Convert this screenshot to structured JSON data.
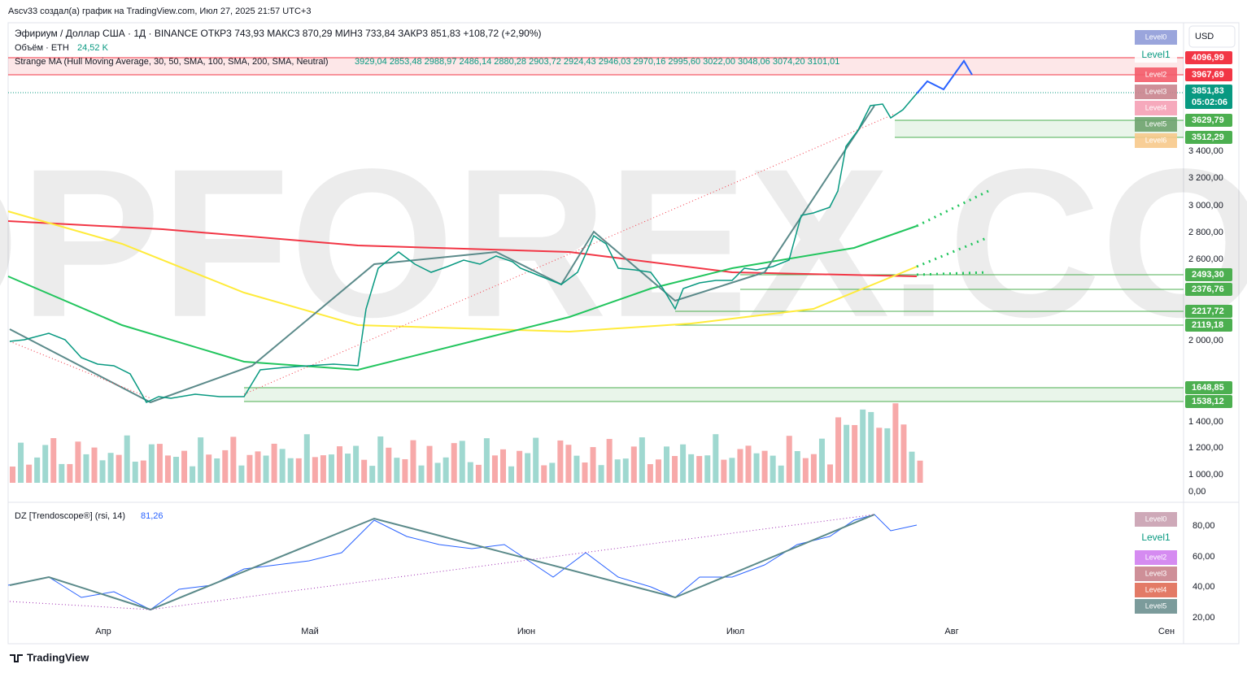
{
  "header": {
    "author_line": "Ascv33 создал(а) график на TradingView.com, Июл 27, 2025 21:57 UTC+3",
    "symbol_line": "Эфириум / Доллар США · 1Д · BINANCE  ОТКР3 743,93  МАКС3 870,29  МИН3 733,84  ЗАКР3 851,83  +108,72 (+2,90%)",
    "volume_label": "Объём · ETH",
    "volume_value": "24,52 K",
    "ma_label": "Strange MA (Hull Moving Average, 30, 50, SMA, 100, SMA, 200, SMA, Neutral)",
    "ma_values": "3929,04  2853,48  2988,97  2486,14  2880,28  2903,72  2924,43  2946,03  2970,16  2995,60  3022,00  3048,06  3074,20  3101,01",
    "currency": "USD"
  },
  "price_axis": [
    "3 400,00",
    "3 200,00",
    "3 000,00",
    "2 800,00",
    "2 600,00",
    "2 000,00",
    "1 400,00",
    "1 200,00",
    "1 000,00",
    "0,00"
  ],
  "price_tags": [
    {
      "label": "4096,99",
      "kind": "red"
    },
    {
      "label": "3967,69",
      "kind": "red"
    },
    {
      "label": "3851,83",
      "time": "05:02:06",
      "kind": "last"
    },
    {
      "label": "3629,79",
      "kind": "green"
    },
    {
      "label": "3512,29",
      "kind": "green"
    },
    {
      "label": "2493,30",
      "kind": "green"
    },
    {
      "label": "2376,76",
      "kind": "green"
    },
    {
      "label": "2217,72",
      "kind": "green"
    },
    {
      "label": "2119,18",
      "kind": "green"
    },
    {
      "label": "1648,85",
      "kind": "green"
    },
    {
      "label": "1538,12",
      "kind": "green"
    }
  ],
  "levels": [
    "Level0",
    "Level1",
    "Level2",
    "Level3",
    "Level4",
    "Level5",
    "Level6"
  ],
  "rsi": {
    "label": "DZ [Trendoscope®] (rsi, 14)",
    "value": "81,26",
    "axis": [
      "80,00",
      "60,00",
      "40,00",
      "20,00"
    ],
    "levels": [
      "Level0",
      "Level1",
      "Level2",
      "Level3",
      "Level4",
      "Level5"
    ]
  },
  "months": [
    "Апр",
    "Май",
    "Июн",
    "Июл",
    "Авг",
    "Сен"
  ],
  "watermark": "TOPFOREX.COM",
  "footer": "TradingView"
}
